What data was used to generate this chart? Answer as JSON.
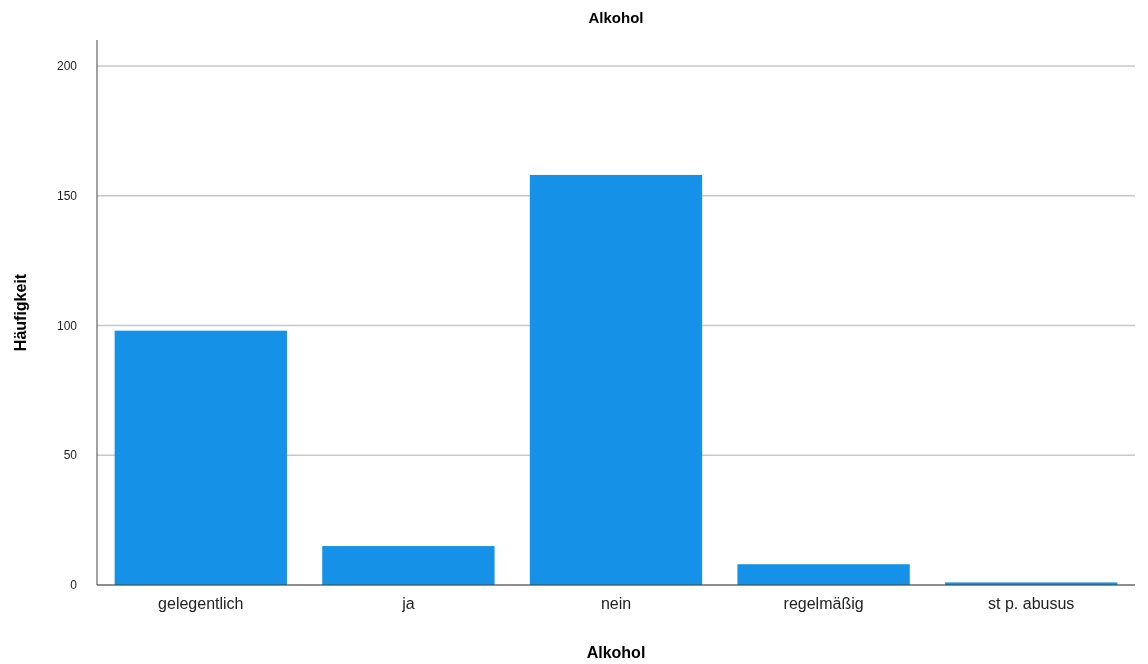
{
  "chart_data": {
    "type": "bar",
    "title": "Alkohol",
    "xlabel": "Alkohol",
    "ylabel": "Häufigkeit",
    "categories": [
      "gelegentlich",
      "ja",
      "nein",
      "regelmäßig",
      "st p. abusus"
    ],
    "values": [
      98,
      15,
      158,
      8,
      1
    ],
    "color": "#1591e8",
    "ylim": [
      0,
      210
    ],
    "yticks": [
      0,
      50,
      100,
      150,
      200
    ],
    "grid": "y"
  }
}
